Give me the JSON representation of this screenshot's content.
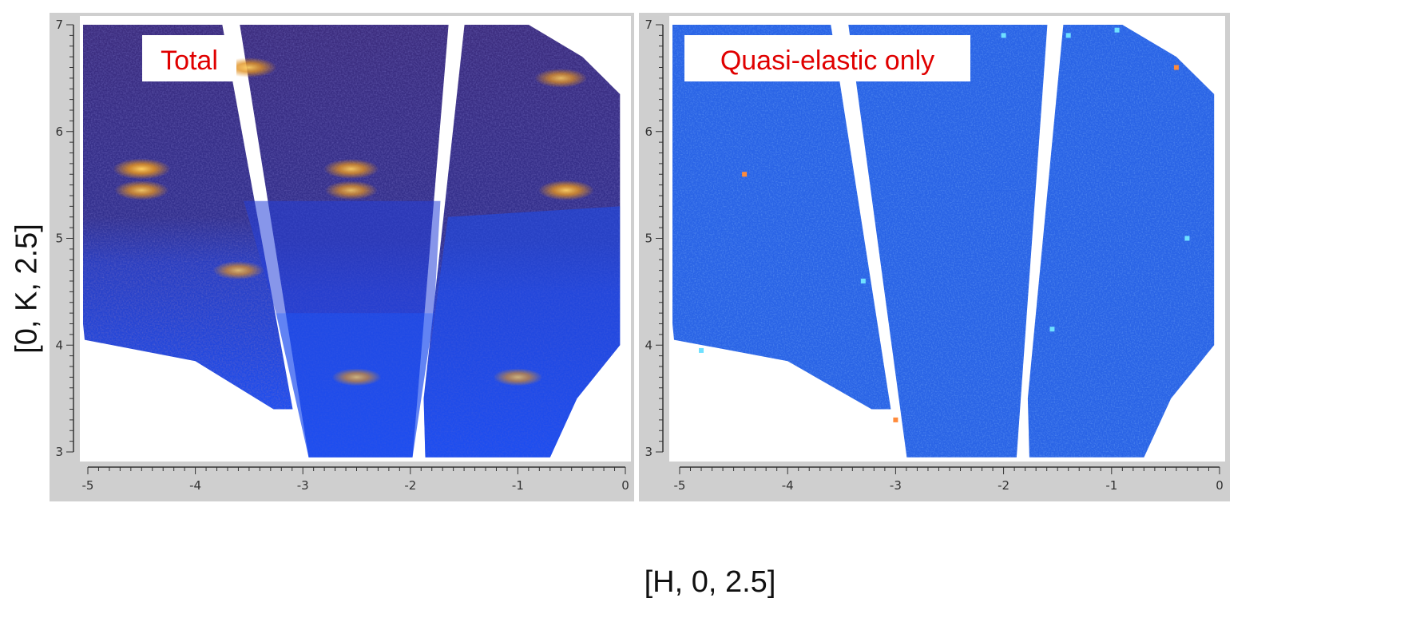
{
  "xlabel": "[H, 0, 2.5]",
  "ylabel": "[0, K, 2.5]",
  "colors": {
    "frame_gray": "#cfcfcf",
    "panel_text": "#e00000",
    "total_background": "#3a2a8a",
    "total_hotspot": "#e09020",
    "quasielastic_background": "#2a64e6",
    "lower_blue": "#1e4ef0"
  },
  "chart_data": [
    {
      "type": "heatmap",
      "panel_label": "Total",
      "xlim": [
        -5,
        0
      ],
      "ylim": [
        3,
        7
      ],
      "xticks": [
        "-5",
        "-4",
        "-3",
        "-2",
        "-1",
        "0"
      ],
      "yticks": [
        "3",
        "4",
        "5",
        "6",
        "7"
      ],
      "colormap": "blue-to-orange intensity",
      "gaps": [
        {
          "top": [
            -3.75,
            7
          ],
          "bottom": [
            -3.05,
            2.95
          ]
        },
        {
          "top": [
            -1.6,
            7
          ],
          "bottom": [
            -1.95,
            2.95
          ]
        }
      ],
      "hotspots": [
        {
          "h": -4.5,
          "k": 5.65,
          "intensity": 1.0
        },
        {
          "h": -4.5,
          "k": 5.45,
          "intensity": 0.8
        },
        {
          "h": -2.55,
          "k": 5.65,
          "intensity": 0.85
        },
        {
          "h": -2.55,
          "k": 5.45,
          "intensity": 0.7
        },
        {
          "h": -0.55,
          "k": 5.45,
          "intensity": 0.9
        },
        {
          "h": -3.5,
          "k": 6.6,
          "intensity": 0.85
        },
        {
          "h": -0.6,
          "k": 6.5,
          "intensity": 0.7
        },
        {
          "h": -3.6,
          "k": 4.7,
          "intensity": 0.6
        },
        {
          "h": -2.5,
          "k": 3.7,
          "intensity": 0.5
        },
        {
          "h": -1.0,
          "k": 3.7,
          "intensity": 0.5
        }
      ]
    },
    {
      "type": "heatmap",
      "panel_label": "Quasi-elastic only",
      "xlim": [
        -5,
        0
      ],
      "ylim": [
        3,
        7
      ],
      "xticks": [
        "-5",
        "-4",
        "-3",
        "-2",
        "-1",
        "0"
      ],
      "yticks": [
        "3",
        "4",
        "5",
        "6",
        "7"
      ],
      "colormap": "uniform blue with sparse cyan/orange pixels",
      "gaps": [
        {
          "top": [
            -3.6,
            7
          ],
          "bottom": [
            -3.0,
            2.95
          ]
        },
        {
          "top": [
            -1.55,
            7
          ],
          "bottom": [
            -1.85,
            2.95
          ]
        }
      ]
    }
  ]
}
